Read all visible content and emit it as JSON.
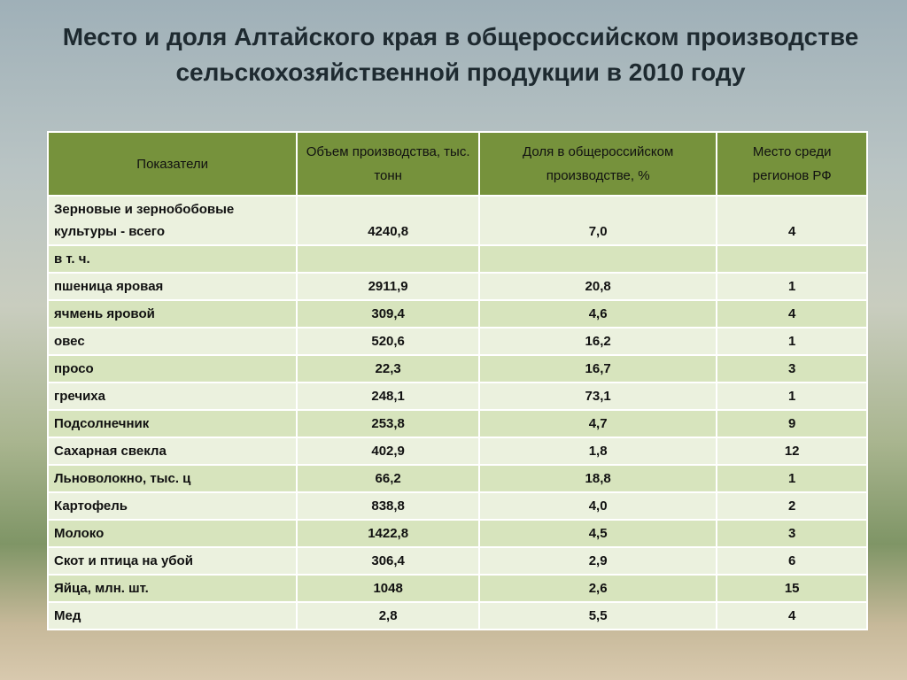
{
  "title_lines": [
    "Место и доля Алтайского края в общероссийском производстве",
    "сельскохозяйственной продукции в 2010 году"
  ],
  "table": {
    "header": [
      "Показатели",
      "Объем производства, тыс. тонн",
      "Доля в общероссийском производстве, %",
      "Место среди регионов РФ"
    ],
    "rows": [
      [
        "Зерновые и зернобобовые культуры - всего",
        "4240,8",
        "7,0",
        "4"
      ],
      [
        "в т. ч.",
        "",
        "",
        ""
      ],
      [
        "пшеница яровая",
        "2911,9",
        "20,8",
        "1"
      ],
      [
        "ячмень яровой",
        "309,4",
        "4,6",
        "4"
      ],
      [
        "овес",
        "520,6",
        "16,2",
        "1"
      ],
      [
        "просо",
        "22,3",
        "16,7",
        "3"
      ],
      [
        "гречиха",
        "248,1",
        "73,1",
        "1"
      ],
      [
        "Подсолнечник",
        "253,8",
        "4,7",
        "9"
      ],
      [
        "Сахарная свекла",
        "402,9",
        "1,8",
        "12"
      ],
      [
        "Льноволокно, тыс. ц",
        "66,2",
        "18,8",
        "1"
      ],
      [
        "Картофель",
        "838,8",
        "4,0",
        "2"
      ],
      [
        "Молоко",
        "1422,8",
        "4,5",
        "3"
      ],
      [
        "Скот и птица на убой",
        "306,4",
        "2,9",
        "6"
      ],
      [
        "Яйца, млн. шт.",
        "1048",
        "2,6",
        "15"
      ],
      [
        "Мед",
        "2,8",
        "5,5",
        "4"
      ]
    ]
  }
}
